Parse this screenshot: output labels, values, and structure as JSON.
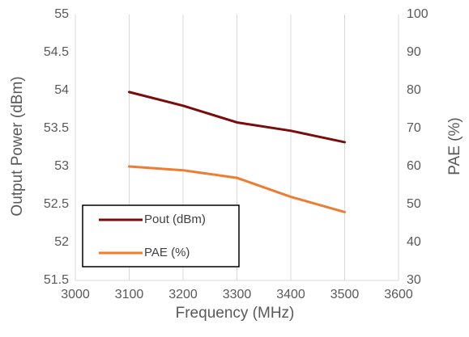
{
  "chart_data": {
    "type": "line",
    "x": [
      3100,
      3200,
      3300,
      3400,
      3500
    ],
    "xlim": [
      3000,
      3600
    ],
    "x_ticks": [
      "3000",
      "3100",
      "3200",
      "3300",
      "3400",
      "3500",
      "3600"
    ],
    "xlabel": "Frequency (MHz)",
    "ylabel": "Output Power (dBm)",
    "ylim": [
      51.5,
      55
    ],
    "y_ticks": [
      "51.5",
      "52",
      "52.5",
      "53",
      "53.5",
      "54",
      "54.5",
      "55"
    ],
    "y2label": "PAE (%)",
    "y2lim": [
      30,
      100
    ],
    "y2_ticks": [
      "30",
      "40",
      "50",
      "60",
      "70",
      "80",
      "90",
      "100"
    ],
    "grid": "vertical",
    "legend_position": "bottom-left",
    "series": [
      {
        "name": "Pout (dBm)",
        "axis": "left",
        "color": "#7B0C0C",
        "values": [
          53.98,
          53.8,
          53.58,
          53.47,
          53.32
        ]
      },
      {
        "name": "PAE (%)",
        "axis": "right",
        "color": "#ED7D31",
        "values": [
          60,
          59,
          57,
          52,
          48
        ]
      }
    ]
  }
}
